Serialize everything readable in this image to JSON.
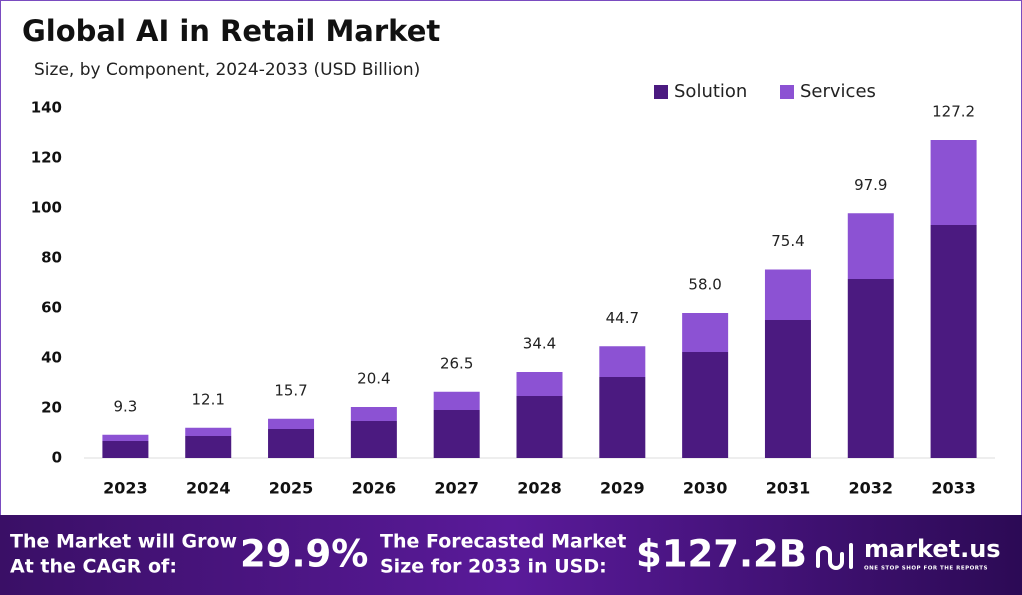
{
  "chart_data": {
    "type": "stacked-bar",
    "title": "Global AI in Retail Market",
    "subtitle": "Size, by Component, 2024-2033 (USD Billion)",
    "categories": [
      "2023",
      "2024",
      "2025",
      "2026",
      "2027",
      "2028",
      "2029",
      "2030",
      "2031",
      "2032",
      "2033"
    ],
    "series": [
      {
        "name": "Solution",
        "color": "#4b1a80",
        "values": [
          6.8,
          8.8,
          11.6,
          14.8,
          19.2,
          24.8,
          32.4,
          42.4,
          55.2,
          71.6,
          93.2
        ]
      },
      {
        "name": "Services",
        "color": "#8c52d3",
        "values": [
          2.5,
          3.3,
          4.1,
          5.6,
          7.3,
          9.6,
          12.3,
          15.6,
          20.2,
          26.3,
          34.0
        ]
      }
    ],
    "totals": [
      9.3,
      12.1,
      15.7,
      20.4,
      26.5,
      34.4,
      44.7,
      {
        "value": 58.0,
        "label": "58.0"
      },
      75.4,
      97.9,
      127.2
    ],
    "ylim": [
      0,
      140
    ],
    "yticks": [
      0,
      20,
      40,
      60,
      80,
      100,
      120,
      140
    ],
    "grid": false,
    "legend": "top-right"
  },
  "footer": {
    "cagr_text": [
      "The Market will Grow",
      "At the CAGR of:"
    ],
    "cagr_value": "29.9%",
    "forecast_text": [
      "The Forecasted Market",
      "Size for 2033 in USD:"
    ],
    "forecast_value": "$127.2B",
    "brand": "market.us",
    "tagline": "ONE STOP SHOP FOR THE REPORTS"
  }
}
